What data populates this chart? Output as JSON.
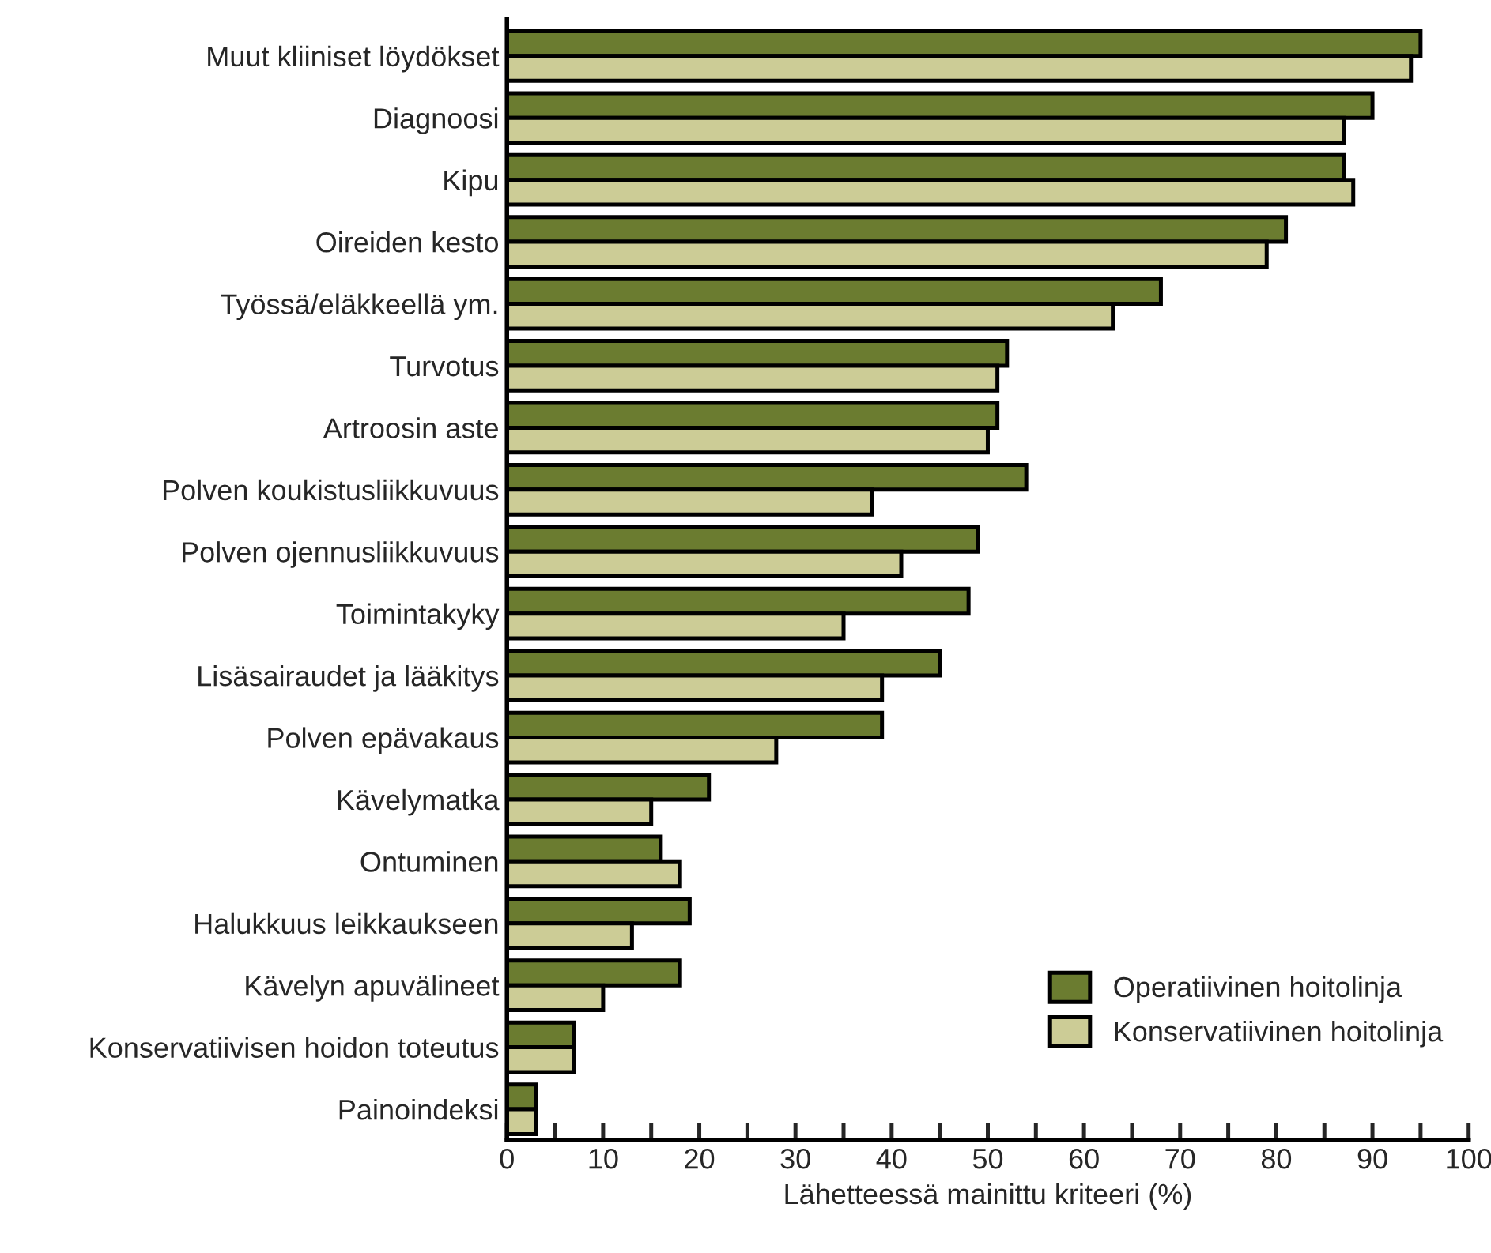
{
  "chart_data": {
    "type": "bar",
    "orientation": "horizontal",
    "xlabel": "Lähetteessä mainittu kriteeri (%)",
    "categories": [
      "Muut kliiniset löydökset",
      "Diagnoosi",
      "Kipu",
      "Oireiden kesto",
      "Työssä/eläkkeellä ym.",
      "Turvotus",
      "Artroosin aste",
      "Polven koukistusliikkuvuus",
      "Polven ojennusliikkuvuus",
      "Toimintakyky",
      "Lisäsairaudet ja lääkitys",
      "Polven epävakaus",
      "Kävelymatka",
      "Ontuminen",
      "Halukkuus leikkaukseen",
      "Kävelyn apuvälineet",
      "Konservatiivisen hoidon toteutus",
      "Painoindeksi"
    ],
    "series": [
      {
        "name": "Operatiivinen hoitolinja",
        "color": "#6b7c30",
        "values": [
          95,
          90,
          87,
          81,
          68,
          52,
          51,
          54,
          49,
          48,
          45,
          39,
          21,
          16,
          19,
          18,
          7,
          3
        ]
      },
      {
        "name": "Konservatiivinen hoitolinja",
        "color": "#cccc96",
        "values": [
          94,
          87,
          88,
          79,
          63,
          51,
          50,
          38,
          41,
          35,
          39,
          28,
          15,
          18,
          13,
          10,
          7,
          3
        ]
      }
    ],
    "xlim": [
      0,
      100
    ],
    "xticks": [
      0,
      {
        "value": 5,
        "label": null
      },
      10,
      {
        "value": 15,
        "label": null
      },
      20,
      {
        "value": 25,
        "label": null
      },
      30,
      {
        "value": 35,
        "label": null
      },
      40,
      {
        "value": 45,
        "label": null
      },
      50,
      {
        "value": 55,
        "label": null
      },
      60,
      {
        "value": 65,
        "label": null
      },
      70,
      {
        "value": 75,
        "label": null
      },
      80,
      {
        "value": 85,
        "label": null
      },
      90,
      {
        "value": 95,
        "label": null
      },
      100
    ],
    "legend": "bottom right",
    "grid": false
  }
}
